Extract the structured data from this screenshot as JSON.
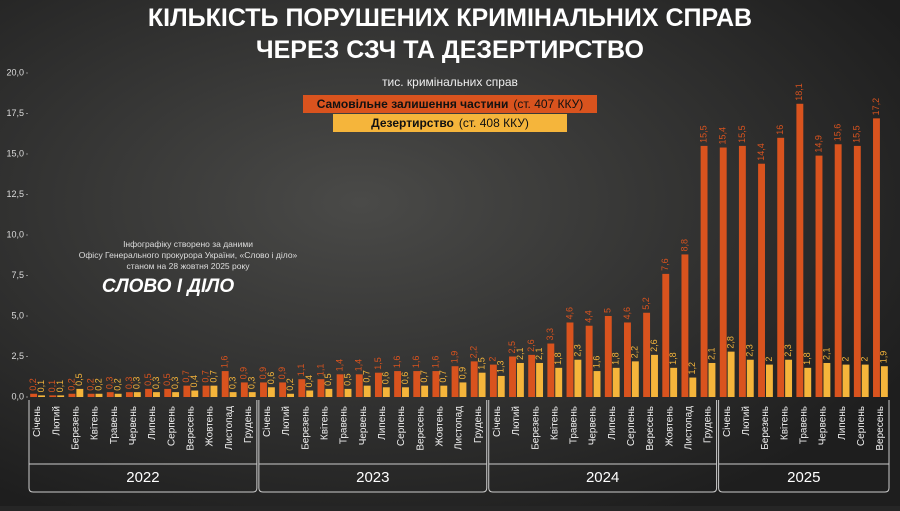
{
  "chart_data": {
    "type": "bar",
    "title": [
      "КІЛЬКІСТЬ ПОРУШЕНИХ КРИМІНАЛЬНИХ СПРАВ",
      "ЧЕРЕЗ СЗЧ ТА ДЕЗЕРТИРСТВО"
    ],
    "subtitle": "тис. кримінальних справ",
    "source": [
      "Інфографіку створено за даними",
      "Офісу Генерального прокурора України, «Слово і діло»",
      "станом на 28 жовтня 2025 року"
    ],
    "logo": "СЛОВО І ДІЛО",
    "categories": [
      "Січень",
      "Лютий",
      "Березень",
      "Квітень",
      "Травень",
      "Червень",
      "Липень",
      "Серпень",
      "Вересень",
      "Жовтень",
      "Листопад",
      "Грудень",
      "Січень",
      "Лютий",
      "Березень",
      "Квітень",
      "Травень",
      "Червень",
      "Липень",
      "Серпень",
      "Вересень",
      "Жовтень",
      "Листопад",
      "Грудень",
      "Січень",
      "Лютий",
      "Березень",
      "Квітень",
      "Травень",
      "Червень",
      "Липень",
      "Серпень",
      "Вересень",
      "Жовтень",
      "Листопад",
      "Грудень",
      "Січень",
      "Лютий",
      "Березень",
      "Квітень",
      "Травень",
      "Червень",
      "Липень",
      "Серпень",
      "Вересень"
    ],
    "groups": [
      {
        "label": "2022",
        "span": 12
      },
      {
        "label": "2023",
        "span": 12
      },
      {
        "label": "2024",
        "span": 12
      },
      {
        "label": "2025",
        "span": 9
      }
    ],
    "series": [
      {
        "name": "Самовільне залишення частини",
        "note": "(ст. 407 ККУ)",
        "color": "#d9531e",
        "values": [
          0.2,
          0.1,
          0.2,
          0.2,
          0.3,
          0.3,
          0.5,
          0.5,
          0.7,
          0.7,
          1.6,
          0.9,
          0.9,
          0.9,
          1.1,
          1.1,
          1.4,
          1.4,
          1.5,
          1.6,
          1.6,
          1.6,
          1.9,
          2.2,
          2.0,
          2.5,
          2.6,
          3.3,
          4.6,
          4.4,
          5.0,
          4.6,
          5.2,
          7.6,
          8.8,
          15.5,
          15.4,
          15.5,
          14.4,
          16,
          18.1,
          14.9,
          15.6,
          15.5,
          17.2
        ],
        "value_labels": [
          "0,2",
          "0,1",
          "0,2",
          "0,2",
          "0,3",
          "0,3",
          "0,5",
          "0,5",
          "0,7",
          "0,7",
          "1,6",
          "0,9",
          "0,9",
          "0,9",
          "1,1",
          "1,1",
          "1,4",
          "1,4",
          "1,5",
          "1,6",
          "1,6",
          "1,6",
          "1,9",
          "2,2",
          "2",
          "2,5",
          "2,6",
          "3,3",
          "4,6",
          "4,4",
          "5",
          "4,6",
          "5,2",
          "7,6",
          "8,8",
          "15,5",
          "15,4",
          "15,5",
          "14,4",
          "16",
          "18,1",
          "14,9",
          "15,6",
          "15,5",
          "17,2"
        ]
      },
      {
        "name": "Дезертирство",
        "note": "(ст. 408 ККУ)",
        "color": "#f5b53b",
        "values": [
          0.1,
          0.1,
          0.5,
          0.2,
          0.2,
          0.3,
          0.3,
          0.3,
          0.4,
          0.7,
          0.3,
          0.3,
          0.6,
          0.2,
          0.4,
          0.5,
          0.5,
          0.7,
          0.6,
          0.6,
          0.7,
          0.7,
          0.9,
          1.5,
          1.3,
          2.1,
          2.1,
          1.8,
          2.3,
          1.6,
          1.8,
          2.2,
          2.6,
          1.8,
          1.2,
          2.1,
          2.8,
          2.3,
          2.0,
          2.3,
          1.8,
          2.1,
          2.0,
          2.0,
          1.9
        ],
        "value_labels": [
          "0,1",
          "0,1",
          "0,5",
          "0,2",
          "0,2",
          "0,3",
          "0,3",
          "0,3",
          "0,4",
          "0,7",
          "0,3",
          "0,3",
          "0,6",
          "0,2",
          "0,4",
          "0,5",
          "0,5",
          "0,7",
          "0,6",
          "0,6",
          "0,7",
          "0,7",
          "0,9",
          "1,5",
          "1,3",
          "2,1",
          "2,1",
          "1,8",
          "2,3",
          "1,6",
          "1,8",
          "2,2",
          "2,6",
          "1,8",
          "1,2",
          "2,1",
          "2,8",
          "2,3",
          "2",
          "2,3",
          "1,8",
          "2,1",
          "2",
          "2",
          "1,9"
        ]
      }
    ],
    "ylim": [
      0,
      20
    ],
    "yticks": [
      {
        "value": 0,
        "label": "0,0"
      },
      {
        "value": 2.5,
        "label": "2,5"
      },
      {
        "value": 5,
        "label": "5,0"
      },
      {
        "value": 7.5,
        "label": "7,5"
      },
      {
        "value": 10,
        "label": "10,0"
      },
      {
        "value": 12.5,
        "label": "12,5"
      },
      {
        "value": 15,
        "label": "15,0"
      },
      {
        "value": 17.5,
        "label": "17,5"
      },
      {
        "value": 20,
        "label": "20,0"
      }
    ],
    "grid": false
  }
}
